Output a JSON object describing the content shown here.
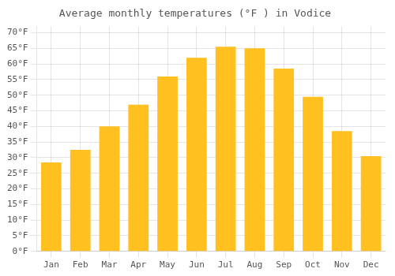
{
  "chart_data": {
    "type": "bar",
    "title": "Average monthly temperatures (°F ) in Vodice",
    "categories": [
      "Jan",
      "Feb",
      "Mar",
      "Apr",
      "May",
      "Jun",
      "Jul",
      "Aug",
      "Sep",
      "Oct",
      "Nov",
      "Dec"
    ],
    "values": [
      28.5,
      32.5,
      40.0,
      47.0,
      56.0,
      62.0,
      65.5,
      65.0,
      58.5,
      49.5,
      38.5,
      30.5
    ],
    "color": "#FFC020",
    "ylim": [
      0,
      72
    ],
    "yticks": [
      {
        "value": 0,
        "label": "0°F"
      },
      {
        "value": 5,
        "label": "5°F"
      },
      {
        "value": 10,
        "label": "10°F"
      },
      {
        "value": 15,
        "label": "15°F"
      },
      {
        "value": 20,
        "label": "20°F"
      },
      {
        "value": 25,
        "label": "25°F"
      },
      {
        "value": 30,
        "label": "30°F"
      },
      {
        "value": 35,
        "label": "35°F"
      },
      {
        "value": 40,
        "label": "40°F"
      },
      {
        "value": 45,
        "label": "45°F"
      },
      {
        "value": 50,
        "label": "50°F"
      },
      {
        "value": 55,
        "label": "55°F"
      },
      {
        "value": 60,
        "label": "60°F"
      },
      {
        "value": 65,
        "label": "65°F"
      },
      {
        "value": 70,
        "label": "70°F"
      }
    ],
    "grid": true
  }
}
